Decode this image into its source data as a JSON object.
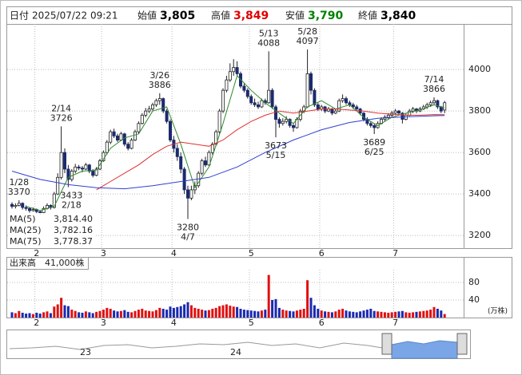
{
  "header": {
    "date_label": "日付",
    "date": "2025/07/22 09:21",
    "fields": [
      {
        "label": "始値",
        "value": "3,805",
        "color": "#000000"
      },
      {
        "label": "高値",
        "value": "3,849",
        "color": "#e00000"
      },
      {
        "label": "安値",
        "value": "3,790",
        "color": "#008000"
      },
      {
        "label": "終値",
        "value": "3,840",
        "color": "#000000"
      }
    ]
  },
  "chart_data": {
    "type": "candlestick",
    "candles": [
      [
        3350,
        3360,
        3330,
        3340
      ],
      [
        3340,
        3355,
        3330,
        3345
      ],
      [
        3345,
        3370,
        3340,
        3355
      ],
      [
        3355,
        3360,
        3325,
        3335
      ],
      [
        3335,
        3345,
        3320,
        3330
      ],
      [
        3330,
        3335,
        3310,
        3320
      ],
      [
        3320,
        3335,
        3315,
        3325
      ],
      [
        3325,
        3330,
        3305,
        3315
      ],
      [
        3315,
        3320,
        3300,
        3310
      ],
      [
        3310,
        3340,
        3305,
        3330
      ],
      [
        3330,
        3355,
        3325,
        3345
      ],
      [
        3345,
        3350,
        3325,
        3335
      ],
      [
        3335,
        3410,
        3330,
        3400
      ],
      [
        3400,
        3500,
        3395,
        3480
      ],
      [
        3480,
        3726,
        3470,
        3600
      ],
      [
        3600,
        3620,
        3500,
        3520
      ],
      [
        3520,
        3540,
        3433,
        3470
      ],
      [
        3470,
        3520,
        3460,
        3510
      ],
      [
        3510,
        3545,
        3500,
        3530
      ],
      [
        3530,
        3540,
        3515,
        3525
      ],
      [
        3525,
        3535,
        3505,
        3520
      ],
      [
        3520,
        3550,
        3515,
        3540
      ],
      [
        3540,
        3545,
        3500,
        3510
      ],
      [
        3510,
        3520,
        3480,
        3490
      ],
      [
        3490,
        3530,
        3485,
        3520
      ],
      [
        3520,
        3570,
        3515,
        3560
      ],
      [
        3560,
        3610,
        3555,
        3600
      ],
      [
        3600,
        3660,
        3590,
        3650
      ],
      [
        3650,
        3710,
        3640,
        3700
      ],
      [
        3700,
        3715,
        3670,
        3680
      ],
      [
        3680,
        3690,
        3650,
        3660
      ],
      [
        3660,
        3700,
        3655,
        3690
      ],
      [
        3690,
        3695,
        3630,
        3640
      ],
      [
        3640,
        3650,
        3610,
        3620
      ],
      [
        3620,
        3670,
        3615,
        3660
      ],
      [
        3660,
        3710,
        3655,
        3700
      ],
      [
        3700,
        3750,
        3690,
        3740
      ],
      [
        3740,
        3790,
        3735,
        3780
      ],
      [
        3780,
        3815,
        3770,
        3800
      ],
      [
        3800,
        3825,
        3790,
        3810
      ],
      [
        3810,
        3840,
        3800,
        3830
      ],
      [
        3830,
        3860,
        3820,
        3850
      ],
      [
        3850,
        3886,
        3830,
        3860
      ],
      [
        3860,
        3865,
        3790,
        3800
      ],
      [
        3800,
        3810,
        3740,
        3750
      ],
      [
        3750,
        3760,
        3650,
        3660
      ],
      [
        3660,
        3680,
        3600,
        3620
      ],
      [
        3620,
        3640,
        3560,
        3580
      ],
      [
        3580,
        3600,
        3500,
        3520
      ],
      [
        3520,
        3530,
        3400,
        3420
      ],
      [
        3420,
        3440,
        3280,
        3380
      ],
      [
        3380,
        3440,
        3370,
        3420
      ],
      [
        3420,
        3460,
        3400,
        3440
      ],
      [
        3440,
        3510,
        3430,
        3500
      ],
      [
        3500,
        3570,
        3490,
        3560
      ],
      [
        3560,
        3580,
        3530,
        3540
      ],
      [
        3540,
        3610,
        3535,
        3600
      ],
      [
        3600,
        3650,
        3590,
        3640
      ],
      [
        3640,
        3710,
        3630,
        3700
      ],
      [
        3700,
        3810,
        3690,
        3800
      ],
      [
        3800,
        3910,
        3790,
        3900
      ],
      [
        3900,
        3970,
        3890,
        3950
      ],
      [
        3950,
        4030,
        3940,
        3990
      ],
      [
        3990,
        4050,
        3970,
        4010
      ],
      [
        4010,
        4040,
        3970,
        3980
      ],
      [
        3980,
        3990,
        3910,
        3920
      ],
      [
        3920,
        3935,
        3890,
        3900
      ],
      [
        3900,
        3910,
        3860,
        3870
      ],
      [
        3870,
        3880,
        3830,
        3840
      ],
      [
        3840,
        3860,
        3820,
        3830
      ],
      [
        3830,
        3845,
        3810,
        3820
      ],
      [
        3820,
        3860,
        3815,
        3850
      ],
      [
        3850,
        3860,
        3830,
        3840
      ],
      [
        3840,
        4088,
        3835,
        3900
      ],
      [
        3900,
        3910,
        3810,
        3820
      ],
      [
        3820,
        3830,
        3673,
        3760
      ],
      [
        3760,
        3770,
        3720,
        3740
      ],
      [
        3740,
        3765,
        3730,
        3750
      ],
      [
        3750,
        3775,
        3740,
        3760
      ],
      [
        3760,
        3765,
        3720,
        3730
      ],
      [
        3730,
        3740,
        3700,
        3720
      ],
      [
        3720,
        3770,
        3715,
        3760
      ],
      [
        3760,
        3810,
        3750,
        3800
      ],
      [
        3800,
        3830,
        3790,
        3820
      ],
      [
        3820,
        4097,
        3815,
        3980
      ],
      [
        3980,
        3990,
        3880,
        3900
      ],
      [
        3900,
        3910,
        3820,
        3830
      ],
      [
        3830,
        3840,
        3800,
        3810
      ],
      [
        3810,
        3830,
        3800,
        3820
      ],
      [
        3820,
        3825,
        3790,
        3800
      ],
      [
        3800,
        3820,
        3795,
        3810
      ],
      [
        3810,
        3815,
        3780,
        3790
      ],
      [
        3790,
        3810,
        3785,
        3800
      ],
      [
        3800,
        3860,
        3795,
        3850
      ],
      [
        3850,
        3880,
        3840,
        3860
      ],
      [
        3860,
        3870,
        3830,
        3840
      ],
      [
        3840,
        3850,
        3820,
        3830
      ],
      [
        3830,
        3840,
        3810,
        3820
      ],
      [
        3820,
        3830,
        3800,
        3810
      ],
      [
        3810,
        3815,
        3780,
        3790
      ],
      [
        3790,
        3795,
        3750,
        3760
      ],
      [
        3760,
        3770,
        3730,
        3740
      ],
      [
        3740,
        3750,
        3720,
        3730
      ],
      [
        3730,
        3740,
        3689,
        3720
      ],
      [
        3720,
        3750,
        3715,
        3740
      ],
      [
        3740,
        3770,
        3735,
        3760
      ],
      [
        3760,
        3780,
        3750,
        3770
      ],
      [
        3770,
        3790,
        3760,
        3780
      ],
      [
        3780,
        3800,
        3770,
        3790
      ],
      [
        3790,
        3810,
        3780,
        3800
      ],
      [
        3800,
        3805,
        3780,
        3790
      ],
      [
        3790,
        3795,
        3740,
        3760
      ],
      [
        3760,
        3790,
        3755,
        3780
      ],
      [
        3780,
        3810,
        3775,
        3800
      ],
      [
        3800,
        3820,
        3790,
        3810
      ],
      [
        3810,
        3815,
        3790,
        3800
      ],
      [
        3800,
        3820,
        3795,
        3810
      ],
      [
        3810,
        3830,
        3805,
        3820
      ],
      [
        3820,
        3840,
        3810,
        3830
      ],
      [
        3830,
        3850,
        3820,
        3840
      ],
      [
        3840,
        3866,
        3830,
        3850
      ],
      [
        3850,
        3855,
        3810,
        3820
      ],
      [
        3820,
        3825,
        3790,
        3800
      ],
      [
        3805,
        3849,
        3790,
        3840
      ]
    ],
    "up_color": "#ffffff",
    "down_color": "#1c2a6e",
    "ylim": [
      3135,
      4220
    ],
    "yticks": [
      3200,
      3400,
      3600,
      3800,
      4000
    ],
    "grid": true,
    "months": [
      "2",
      "3",
      "4",
      "5",
      "6",
      "7"
    ],
    "month_starts": [
      7,
      26,
      46,
      68,
      88,
      109
    ],
    "series": [
      {
        "name": "MA(5)",
        "color": "#2e8b2e",
        "last_label": "3,814.40",
        "x": [
          4,
          8,
          12,
          16,
          20,
          24,
          28,
          32,
          36,
          40,
          44,
          48,
          52,
          56,
          60,
          64,
          68,
          72,
          76,
          80,
          84,
          88,
          92,
          96,
          100,
          104,
          108,
          112,
          116,
          120,
          123
        ],
        "values": [
          3340,
          3320,
          3340,
          3480,
          3510,
          3515,
          3620,
          3670,
          3690,
          3800,
          3820,
          3640,
          3430,
          3530,
          3740,
          3970,
          3900,
          3840,
          3790,
          3740,
          3820,
          3850,
          3810,
          3830,
          3770,
          3730,
          3770,
          3790,
          3805,
          3830,
          3814.4
        ]
      },
      {
        "name": "MA(25)",
        "color": "#e03030",
        "last_label": "3,782.16",
        "x": [
          24,
          28,
          32,
          36,
          40,
          44,
          48,
          52,
          56,
          60,
          64,
          68,
          72,
          76,
          80,
          84,
          88,
          92,
          96,
          100,
          104,
          108,
          112,
          116,
          120,
          123
        ],
        "values": [
          3420,
          3460,
          3500,
          3540,
          3590,
          3630,
          3650,
          3640,
          3630,
          3660,
          3710,
          3750,
          3780,
          3800,
          3790,
          3800,
          3810,
          3810,
          3805,
          3800,
          3790,
          3785,
          3780,
          3780,
          3783,
          3782.16
        ]
      },
      {
        "name": "MA(75)",
        "color": "#3040d0",
        "last_label": "3,778.37",
        "x": [
          0,
          8,
          16,
          24,
          32,
          40,
          48,
          56,
          64,
          72,
          80,
          88,
          96,
          104,
          112,
          120,
          123
        ],
        "values": [
          3510,
          3470,
          3445,
          3430,
          3425,
          3440,
          3460,
          3480,
          3530,
          3600,
          3660,
          3710,
          3745,
          3765,
          3772,
          3777,
          3778.37
        ]
      }
    ],
    "annotations": [
      {
        "date": "1/28",
        "price": 3370,
        "at": 2,
        "side": "high"
      },
      {
        "date": "2/14",
        "price": 3726,
        "at": 14,
        "side": "high"
      },
      {
        "date": "2/18",
        "price": 3433,
        "at": 16,
        "side": "low"
      },
      {
        "date": "3/26",
        "price": 3886,
        "at": 42,
        "side": "high"
      },
      {
        "date": "4/7",
        "price": 3280,
        "at": 50,
        "side": "low"
      },
      {
        "date": "5/13",
        "price": 4088,
        "at": 73,
        "side": "high"
      },
      {
        "date": "5/15",
        "price": 3673,
        "at": 75,
        "side": "low"
      },
      {
        "date": "5/28",
        "price": 4097,
        "at": 84,
        "side": "high"
      },
      {
        "date": "6/25",
        "price": 3689,
        "at": 103,
        "side": "low"
      },
      {
        "date": "7/14",
        "price": 3866,
        "at": 120,
        "side": "high"
      }
    ],
    "volume": {
      "title": "出来高　41,000株",
      "unit": "(万株)",
      "ylim": [
        0,
        109
      ],
      "yticks": [
        40,
        80
      ],
      "up_color": "#e01010",
      "down_color": "#1a2ab0",
      "values": [
        12,
        10,
        15,
        11,
        9,
        10,
        8,
        11,
        9,
        12,
        14,
        10,
        25,
        30,
        45,
        28,
        26,
        18,
        15,
        12,
        11,
        14,
        12,
        10,
        13,
        15,
        18,
        22,
        20,
        16,
        14,
        15,
        17,
        13,
        12,
        15,
        18,
        20,
        16,
        15,
        14,
        17,
        22,
        20,
        18,
        25,
        22,
        24,
        26,
        30,
        35,
        28,
        22,
        20,
        18,
        16,
        17,
        20,
        22,
        26,
        28,
        30,
        27,
        25,
        24,
        20,
        18,
        17,
        16,
        15,
        14,
        16,
        18,
        97,
        40,
        42,
        22,
        18,
        16,
        15,
        14,
        16,
        18,
        20,
        85,
        45,
        28,
        20,
        16,
        14,
        13,
        12,
        14,
        18,
        20,
        16,
        14,
        13,
        12,
        14,
        16,
        18,
        20,
        15,
        14,
        13,
        12,
        11,
        12,
        13,
        14,
        15,
        12,
        11,
        12,
        13,
        14,
        15,
        16,
        18,
        24,
        20,
        16,
        8
      ]
    }
  },
  "navigator": {
    "labels": [
      "23",
      "24"
    ]
  }
}
